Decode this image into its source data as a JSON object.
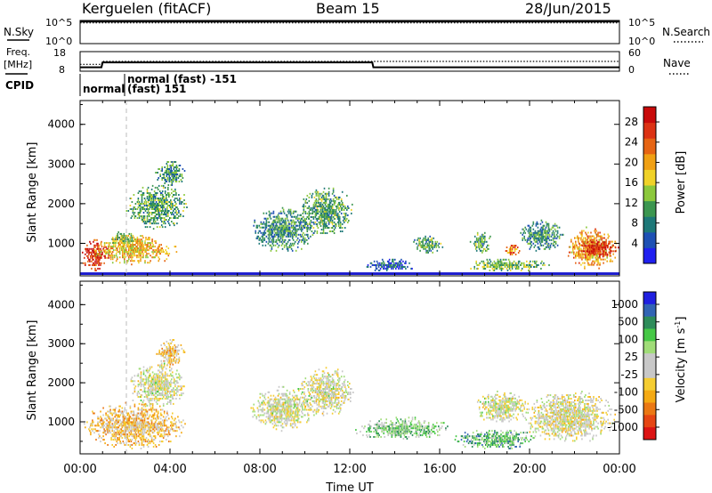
{
  "title": {
    "station": "Kerguelen (fitACF)",
    "beam": "Beam 15",
    "date": "28/Jun/2015"
  },
  "chart_data": [
    {
      "type": "line",
      "panel": "sky-search",
      "left_label": "N.Sky",
      "right_label": "N.Search",
      "left_ticks": [
        "10^5",
        "10^0"
      ],
      "right_ticks": [
        "10^5",
        "10^0"
      ],
      "series": [
        {
          "style": "solid",
          "x": [
            "00:00",
            "24:00"
          ],
          "values": [
            60000,
            60000
          ]
        },
        {
          "style": "dotted",
          "x": [
            "00:00",
            "24:00"
          ],
          "values": [
            60000,
            60000
          ]
        }
      ]
    },
    {
      "type": "line",
      "panel": "freq-nave",
      "left_label": "Freq.",
      "left_unit": "[MHz]",
      "right_label": "Nave",
      "left_ticks": [
        "18",
        "8"
      ],
      "right_ticks": [
        "60",
        "0"
      ],
      "freq_ylim": [
        8,
        18
      ],
      "nave_ylim": [
        0,
        60
      ],
      "series": [
        {
          "style": "solid",
          "x": [
            0.0,
            0.95,
            1.0,
            13.0,
            13.05,
            24.0
          ],
          "values": [
            10,
            10,
            12.5,
            12.5,
            10,
            10
          ]
        },
        {
          "style": "dotted",
          "x": [
            0.0,
            0.95,
            1.0,
            24.0
          ],
          "values": [
            11.5,
            11.5,
            13,
            13
          ]
        }
      ]
    },
    {
      "type": "annotation",
      "panel": "cpid",
      "label": "CPID",
      "annotations": [
        {
          "x": 0.0,
          "text": "normal"
        },
        {
          "x": 2.0,
          "text": "normal (fast) -151"
        },
        {
          "x": 2.0,
          "text": "(fast) 151"
        }
      ]
    },
    {
      "type": "heatmap",
      "panel": "power",
      "ylabel": "Slant Range [km]",
      "ylim": [
        180,
        4600
      ],
      "yticks": [
        "1000",
        "2000",
        "3000",
        "4000"
      ],
      "colorbar": {
        "label": "Power [dB]",
        "ticks": [
          "4",
          "8",
          "12",
          "16",
          "20",
          "24",
          "28"
        ],
        "range": [
          0,
          31
        ],
        "colors": [
          "#2020f0",
          "#1e50b4",
          "#1e7878",
          "#3c9650",
          "#8cc83c",
          "#f0d228",
          "#f0a014",
          "#e66414",
          "#dc3214",
          "#c80a0a"
        ]
      },
      "clusters": [
        {
          "t": [
            0.0,
            1.3
          ],
          "r": [
            250,
            1100
          ],
          "level": 0.85
        },
        {
          "t": [
            0.5,
            4.3
          ],
          "r": [
            400,
            1200
          ],
          "level": 0.6
        },
        {
          "t": [
            1.2,
            2.6
          ],
          "r": [
            900,
            1300
          ],
          "level": 0.45
        },
        {
          "t": [
            2.0,
            4.8
          ],
          "r": [
            1300,
            2500
          ],
          "level": 0.35
        },
        {
          "t": [
            3.3,
            4.7
          ],
          "r": [
            2400,
            3100
          ],
          "level": 0.3
        },
        {
          "t": [
            7.5,
            10.5
          ],
          "r": [
            700,
            1900
          ],
          "level": 0.3
        },
        {
          "t": [
            9.6,
            12.2
          ],
          "r": [
            1100,
            2400
          ],
          "level": 0.35
        },
        {
          "t": [
            12.5,
            15.0
          ],
          "r": [
            250,
            600
          ],
          "level": 0.2
        },
        {
          "t": [
            14.7,
            16.2
          ],
          "r": [
            700,
            1200
          ],
          "level": 0.35
        },
        {
          "t": [
            17.3,
            18.3
          ],
          "r": [
            700,
            1300
          ],
          "level": 0.35
        },
        {
          "t": [
            17.0,
            21.0
          ],
          "r": [
            250,
            600
          ],
          "level": 0.4
        },
        {
          "t": [
            18.8,
            19.6
          ],
          "r": [
            650,
            1000
          ],
          "level": 0.7
        },
        {
          "t": [
            19.5,
            21.5
          ],
          "r": [
            700,
            1600
          ],
          "level": 0.3
        },
        {
          "t": [
            21.5,
            24.0
          ],
          "r": [
            300,
            1400
          ],
          "level": 0.65
        },
        {
          "t": [
            22.0,
            24.0
          ],
          "r": [
            600,
            1100
          ],
          "level": 0.9
        }
      ]
    },
    {
      "type": "heatmap",
      "panel": "velocity",
      "ylabel": "Slant Range [km]",
      "ylim": [
        180,
        4600
      ],
      "yticks": [
        "1000",
        "2000",
        "3000",
        "4000"
      ],
      "xlabel": "Time UT",
      "xticks": [
        "00:00",
        "04:00",
        "08:00",
        "12:00",
        "16:00",
        "20:00",
        "00:00"
      ],
      "colorbar": {
        "label": "Velocity [m s",
        "label_sup": "-1",
        "label_end": "]",
        "ticks": [
          "1000",
          "500",
          "100",
          "25",
          "-25",
          "-100",
          "-500",
          "-1000"
        ],
        "colors": [
          "#2020e0",
          "#3264b4",
          "#2e8c5a",
          "#46c846",
          "#a0dc78",
          "#c8c8c8",
          "#c8c8c8",
          "#f5cd32",
          "#f5aa14",
          "#eb7814",
          "#e64614",
          "#dc1414"
        ]
      },
      "clusters": [
        {
          "t": [
            0.0,
            4.8
          ],
          "r": [
            250,
            1500
          ],
          "level": 0.65
        },
        {
          "t": [
            2.0,
            4.8
          ],
          "r": [
            1300,
            2500
          ],
          "level": 0.5
        },
        {
          "t": [
            3.3,
            4.7
          ],
          "r": [
            2400,
            3100
          ],
          "level": 0.62
        },
        {
          "t": [
            7.5,
            10.5
          ],
          "r": [
            700,
            1900
          ],
          "level": 0.5
        },
        {
          "t": [
            9.6,
            12.2
          ],
          "r": [
            1100,
            2400
          ],
          "level": 0.5
        },
        {
          "t": [
            12.0,
            16.5
          ],
          "r": [
            500,
            1100
          ],
          "level": 0.35
        },
        {
          "t": [
            16.5,
            20.5
          ],
          "r": [
            250,
            800
          ],
          "level": 0.3
        },
        {
          "t": [
            17.5,
            20.0
          ],
          "r": [
            900,
            1800
          ],
          "level": 0.5
        },
        {
          "t": [
            19.5,
            24.0
          ],
          "r": [
            400,
            1800
          ],
          "level": 0.52
        }
      ]
    }
  ]
}
